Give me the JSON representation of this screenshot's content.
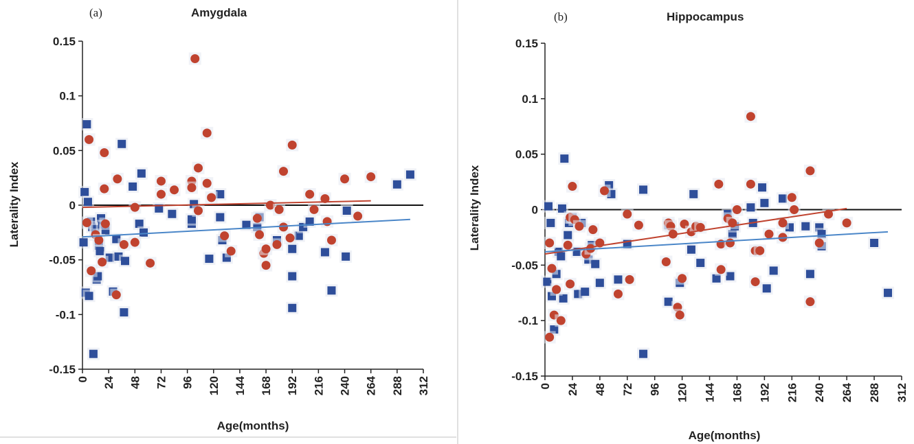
{
  "chart_data": [
    {
      "type": "scatter",
      "panel_label": "(a)",
      "title": "Amygdala",
      "xlabel": "Age(months)",
      "ylabel": "Laterality Index",
      "xlim": [
        0,
        312
      ],
      "ylim": [
        -0.15,
        0.15
      ],
      "x_ticks": [
        "0",
        "24",
        "48",
        "72",
        "96",
        "120",
        "144",
        "168",
        "192",
        "216",
        "240",
        "264",
        "288",
        "312"
      ],
      "y_ticks": [
        "0.15",
        "0.1",
        "0.05",
        "0",
        "-0.05",
        "-0.1",
        "-0.15"
      ],
      "zero_line": true,
      "grid": false,
      "series": [
        {
          "marker": "square",
          "color": "#2e4e9a",
          "points": [
            [
              2,
              0.012
            ],
            [
              4,
              0.074
            ],
            [
              5,
              0.003
            ],
            [
              1,
              -0.034
            ],
            [
              3,
              -0.08
            ],
            [
              6,
              -0.083
            ],
            [
              8,
              -0.015
            ],
            [
              9,
              -0.02
            ],
            [
              10,
              -0.136
            ],
            [
              12,
              -0.022
            ],
            [
              13,
              -0.068
            ],
            [
              14,
              -0.065
            ],
            [
              15,
              -0.037
            ],
            [
              16,
              -0.042
            ],
            [
              17,
              -0.012
            ],
            [
              18,
              -0.019
            ],
            [
              21,
              -0.023
            ],
            [
              25,
              -0.048
            ],
            [
              28,
              -0.079
            ],
            [
              31,
              -0.031
            ],
            [
              33,
              -0.047
            ],
            [
              36,
              0.056
            ],
            [
              38,
              -0.098
            ],
            [
              39,
              -0.051
            ],
            [
              46,
              0.017
            ],
            [
              52,
              -0.017
            ],
            [
              54,
              0.029
            ],
            [
              56,
              -0.025
            ],
            [
              70,
              -0.003
            ],
            [
              82,
              -0.008
            ],
            [
              100,
              -0.017
            ],
            [
              100,
              -0.013
            ],
            [
              102,
              0.001
            ],
            [
              116,
              -0.049
            ],
            [
              126,
              0.01
            ],
            [
              126,
              -0.011
            ],
            [
              128,
              -0.032
            ],
            [
              132,
              -0.048
            ],
            [
              150,
              -0.018
            ],
            [
              160,
              -0.02
            ],
            [
              162,
              -0.011
            ],
            [
              178,
              -0.032
            ],
            [
              192,
              -0.04
            ],
            [
              192,
              -0.065
            ],
            [
              192,
              -0.094
            ],
            [
              198,
              -0.028
            ],
            [
              202,
              -0.02
            ],
            [
              208,
              -0.015
            ],
            [
              222,
              -0.043
            ],
            [
              228,
              -0.078
            ],
            [
              241,
              -0.047
            ],
            [
              242,
              -0.005
            ],
            [
              288,
              0.019
            ],
            [
              300,
              0.028
            ]
          ]
        },
        {
          "marker": "circle",
          "color": "#c0432f",
          "points": [
            [
              4,
              -0.016
            ],
            [
              6,
              0.06
            ],
            [
              8,
              -0.06
            ],
            [
              12,
              -0.027
            ],
            [
              15,
              -0.032
            ],
            [
              18,
              -0.052
            ],
            [
              20,
              0.048
            ],
            [
              20,
              0.015
            ],
            [
              21,
              -0.017
            ],
            [
              31,
              -0.082
            ],
            [
              32,
              0.024
            ],
            [
              38,
              -0.036
            ],
            [
              48,
              -0.034
            ],
            [
              48,
              -0.002
            ],
            [
              62,
              -0.053
            ],
            [
              72,
              0.022
            ],
            [
              72,
              0.01
            ],
            [
              84,
              0.014
            ],
            [
              100,
              0.022
            ],
            [
              100,
              0.016
            ],
            [
              103,
              0.134
            ],
            [
              106,
              0.034
            ],
            [
              106,
              -0.005
            ],
            [
              114,
              0.066
            ],
            [
              114,
              0.02
            ],
            [
              118,
              0.007
            ],
            [
              130,
              -0.028
            ],
            [
              136,
              -0.042
            ],
            [
              160,
              -0.012
            ],
            [
              162,
              -0.027
            ],
            [
              166,
              -0.044
            ],
            [
              168,
              -0.055
            ],
            [
              168,
              -0.04
            ],
            [
              172,
              0.0
            ],
            [
              178,
              -0.036
            ],
            [
              180,
              -0.004
            ],
            [
              184,
              -0.02
            ],
            [
              184,
              0.031
            ],
            [
              190,
              -0.03
            ],
            [
              192,
              0.055
            ],
            [
              208,
              0.01
            ],
            [
              212,
              -0.004
            ],
            [
              222,
              0.006
            ],
            [
              224,
              -0.015
            ],
            [
              228,
              -0.032
            ],
            [
              240,
              0.024
            ],
            [
              252,
              -0.01
            ],
            [
              264,
              0.026
            ]
          ]
        }
      ],
      "trend_lines": [
        {
          "color": "#c0432f",
          "x": [
            0,
            264
          ],
          "y": [
            -0.002,
            0.004
          ]
        },
        {
          "color": "#4a86c8",
          "x": [
            0,
            300
          ],
          "y": [
            -0.029,
            -0.013
          ]
        }
      ]
    },
    {
      "type": "scatter",
      "panel_label": "(b)",
      "title": "Hippocampus",
      "xlabel": "Age(months)",
      "ylabel": "Laterality Index",
      "xlim": [
        0,
        312
      ],
      "ylim": [
        -0.15,
        0.15
      ],
      "x_ticks": [
        "0",
        "24",
        "48",
        "72",
        "96",
        "120",
        "144",
        "168",
        "192",
        "216",
        "240",
        "264",
        "288",
        "312"
      ],
      "y_ticks": [
        "0.15",
        "0.1",
        "0.05",
        "0",
        "-0.05",
        "-0.1",
        "-0.15"
      ],
      "zero_line": true,
      "grid": false,
      "series": [
        {
          "marker": "square",
          "color": "#2e4e9a",
          "points": [
            [
              3,
              0.003
            ],
            [
              5,
              -0.012
            ],
            [
              2,
              -0.065
            ],
            [
              6,
              -0.078
            ],
            [
              8,
              -0.108
            ],
            [
              10,
              -0.058
            ],
            [
              12,
              -0.038
            ],
            [
              14,
              -0.042
            ],
            [
              15,
              0.001
            ],
            [
              16,
              -0.08
            ],
            [
              17,
              0.046
            ],
            [
              20,
              -0.023
            ],
            [
              21,
              -0.012
            ],
            [
              24,
              -0.007
            ],
            [
              28,
              -0.038
            ],
            [
              29,
              -0.076
            ],
            [
              32,
              -0.012
            ],
            [
              35,
              -0.074
            ],
            [
              38,
              -0.045
            ],
            [
              41,
              -0.032
            ],
            [
              44,
              -0.049
            ],
            [
              48,
              -0.066
            ],
            [
              56,
              0.022
            ],
            [
              58,
              0.014
            ],
            [
              64,
              -0.063
            ],
            [
              72,
              -0.031
            ],
            [
              86,
              0.018
            ],
            [
              86,
              -0.13
            ],
            [
              108,
              -0.014
            ],
            [
              108,
              -0.083
            ],
            [
              118,
              -0.066
            ],
            [
              128,
              -0.036
            ],
            [
              130,
              0.014
            ],
            [
              136,
              -0.048
            ],
            [
              150,
              -0.062
            ],
            [
              160,
              -0.004
            ],
            [
              162,
              -0.06
            ],
            [
              164,
              -0.022
            ],
            [
              166,
              -0.015
            ],
            [
              180,
              0.002
            ],
            [
              182,
              -0.012
            ],
            [
              190,
              0.02
            ],
            [
              192,
              0.006
            ],
            [
              194,
              -0.071
            ],
            [
              200,
              -0.055
            ],
            [
              208,
              0.01
            ],
            [
              214,
              -0.016
            ],
            [
              228,
              -0.015
            ],
            [
              232,
              -0.058
            ],
            [
              240,
              -0.016
            ],
            [
              242,
              -0.022
            ],
            [
              242,
              -0.033
            ],
            [
              288,
              -0.03
            ],
            [
              300,
              -0.075
            ]
          ]
        },
        {
          "marker": "circle",
          "color": "#c0432f",
          "points": [
            [
              4,
              -0.03
            ],
            [
              4,
              -0.115
            ],
            [
              6,
              -0.053
            ],
            [
              8,
              -0.095
            ],
            [
              10,
              -0.072
            ],
            [
              14,
              -0.1
            ],
            [
              20,
              -0.032
            ],
            [
              22,
              -0.067
            ],
            [
              22,
              -0.007
            ],
            [
              24,
              0.021
            ],
            [
              26,
              -0.009
            ],
            [
              30,
              -0.015
            ],
            [
              36,
              -0.04
            ],
            [
              40,
              -0.035
            ],
            [
              42,
              -0.018
            ],
            [
              48,
              -0.03
            ],
            [
              52,
              0.017
            ],
            [
              64,
              -0.076
            ],
            [
              72,
              -0.004
            ],
            [
              74,
              -0.063
            ],
            [
              82,
              -0.014
            ],
            [
              106,
              -0.047
            ],
            [
              108,
              -0.012
            ],
            [
              110,
              -0.015
            ],
            [
              112,
              -0.022
            ],
            [
              116,
              -0.088
            ],
            [
              118,
              -0.095
            ],
            [
              120,
              -0.062
            ],
            [
              122,
              -0.013
            ],
            [
              128,
              -0.02
            ],
            [
              132,
              -0.015
            ],
            [
              136,
              -0.016
            ],
            [
              152,
              0.023
            ],
            [
              154,
              -0.031
            ],
            [
              154,
              -0.054
            ],
            [
              160,
              -0.008
            ],
            [
              162,
              -0.03
            ],
            [
              164,
              -0.012
            ],
            [
              168,
              0.0
            ],
            [
              180,
              0.084
            ],
            [
              180,
              0.023
            ],
            [
              184,
              -0.065
            ],
            [
              184,
              -0.037
            ],
            [
              188,
              -0.037
            ],
            [
              196,
              -0.022
            ],
            [
              208,
              -0.012
            ],
            [
              208,
              -0.025
            ],
            [
              216,
              0.011
            ],
            [
              218,
              0.0
            ],
            [
              232,
              0.035
            ],
            [
              232,
              -0.083
            ],
            [
              240,
              -0.03
            ],
            [
              248,
              -0.004
            ],
            [
              264,
              -0.012
            ]
          ]
        }
      ],
      "trend_lines": [
        {
          "color": "#c0432f",
          "x": [
            0,
            264
          ],
          "y": [
            -0.04,
            0.001
          ]
        },
        {
          "color": "#4a86c8",
          "x": [
            0,
            300
          ],
          "y": [
            -0.038,
            -0.02
          ]
        }
      ]
    }
  ]
}
